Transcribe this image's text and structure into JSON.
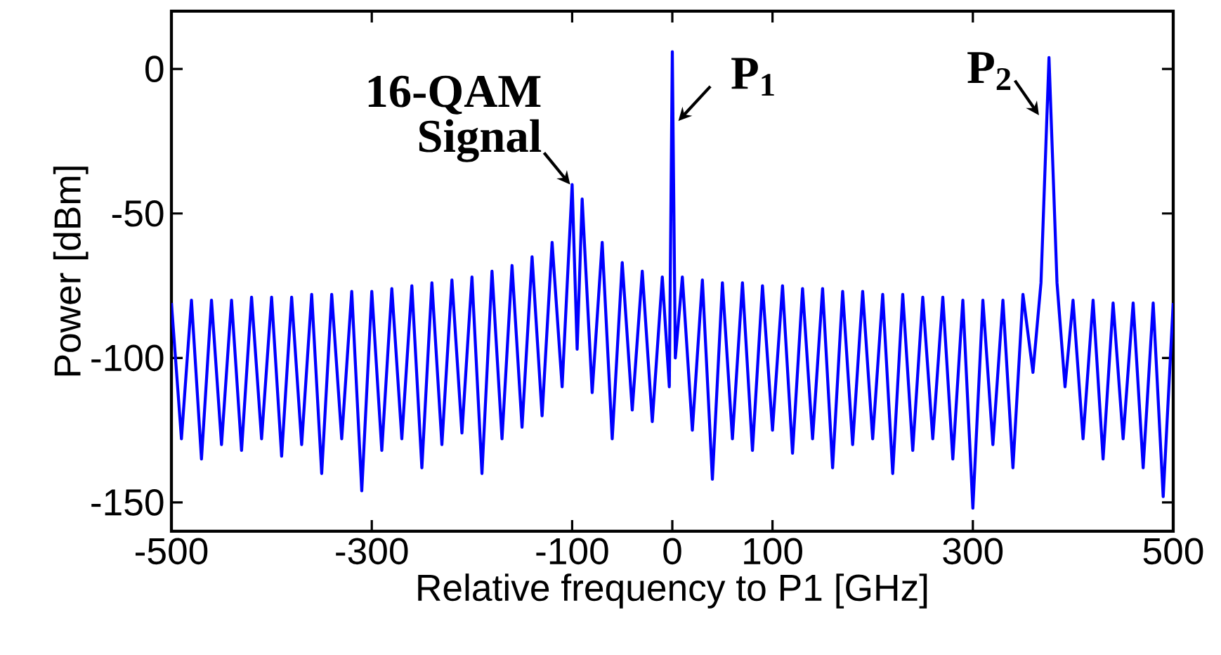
{
  "chart_data": {
    "type": "line",
    "xlabel": "Relative frequency to P1 [GHz]",
    "ylabel": "Power [dBm]",
    "color": "#0000ff",
    "x": [
      -500,
      -490,
      -480,
      -470,
      -460,
      -450,
      -440,
      -430,
      -420,
      -410,
      -400,
      -390,
      -380,
      -370,
      -360,
      -350,
      -340,
      -330,
      -320,
      -310,
      -300,
      -290,
      -280,
      -270,
      -260,
      -250,
      -240,
      -230,
      -220,
      -210,
      -200,
      -190,
      -180,
      -170,
      -160,
      -150,
      -140,
      -130,
      -120,
      -110,
      -100,
      -95,
      -90,
      -80,
      -70,
      -60,
      -50,
      -40,
      -30,
      -20,
      -10,
      -3,
      0,
      3,
      10,
      20,
      30,
      40,
      50,
      60,
      70,
      80,
      90,
      100,
      110,
      120,
      130,
      140,
      150,
      160,
      170,
      180,
      190,
      200,
      210,
      220,
      230,
      240,
      250,
      260,
      270,
      280,
      290,
      300,
      310,
      320,
      330,
      340,
      350,
      360,
      368,
      376,
      384,
      392,
      400,
      410,
      420,
      430,
      440,
      450,
      460,
      470,
      480,
      490,
      500
    ],
    "values": [
      -81,
      -128,
      -80,
      -135,
      -80,
      -130,
      -80,
      -132,
      -79,
      -128,
      -79,
      -134,
      -79,
      -130,
      -78,
      -140,
      -78,
      -128,
      -77,
      -146,
      -77,
      -132,
      -76,
      -128,
      -75,
      -138,
      -74,
      -130,
      -73,
      -126,
      -72,
      -140,
      -70,
      -128,
      -68,
      -124,
      -65,
      -120,
      -60,
      -110,
      -40,
      -97,
      -45,
      -112,
      -60,
      -128,
      -67,
      -118,
      -70,
      -122,
      -72,
      -110,
      6,
      -100,
      -72,
      -125,
      -73,
      -142,
      -74,
      -128,
      -74,
      -132,
      -75,
      -125,
      -75,
      -133,
      -76,
      -128,
      -76,
      -138,
      -77,
      -130,
      -77,
      -128,
      -78,
      -140,
      -78,
      -132,
      -79,
      -128,
      -79,
      -135,
      -80,
      -152,
      -80,
      -130,
      -80,
      -138,
      -78,
      -105,
      -74,
      4,
      -74,
      -110,
      -80,
      -128,
      -80,
      -135,
      -81,
      -128,
      -81,
      -138,
      -81,
      -148,
      -81
    ],
    "xlim": [
      -500,
      500
    ],
    "ylim": [
      -160,
      20
    ],
    "xticks": [
      -500,
      -300,
      -100,
      0,
      100,
      300,
      500
    ],
    "yticks": [
      -150,
      -100,
      -50,
      0
    ],
    "annotations": [
      {
        "text": "16-QAM Signal",
        "x": -100,
        "y": -40
      },
      {
        "text": "P$_{1}$",
        "x": 0,
        "y": 6
      },
      {
        "text": "P$_{2}$",
        "x": 376,
        "y": 4
      }
    ]
  }
}
